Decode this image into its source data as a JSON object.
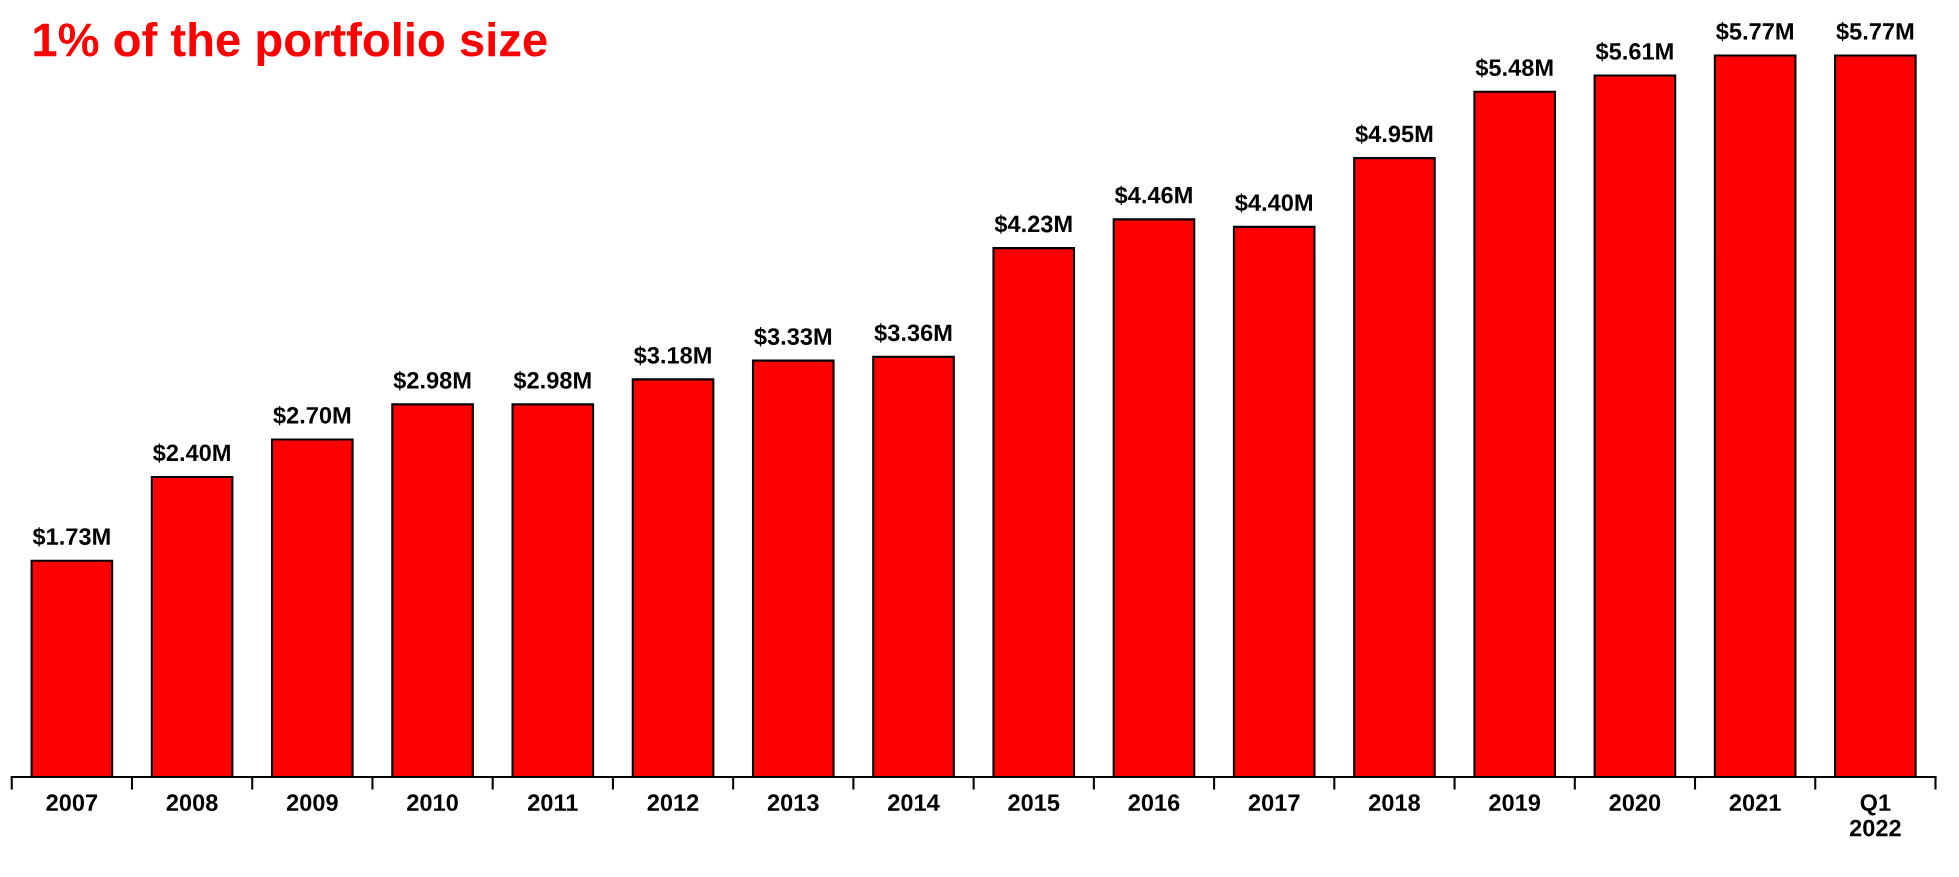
{
  "chart_data": {
    "type": "bar",
    "title": "1% of the portfolio size",
    "categories": [
      "2007",
      "2008",
      "2009",
      "2010",
      "2011",
      "2012",
      "2013",
      "2014",
      "2015",
      "2016",
      "2017",
      "2018",
      "2019",
      "2020",
      "2021",
      "Q1\n2022"
    ],
    "values": [
      1.73,
      2.4,
      2.7,
      2.98,
      2.98,
      3.18,
      3.33,
      3.36,
      4.23,
      4.46,
      4.4,
      4.95,
      5.48,
      5.61,
      5.77,
      5.77
    ],
    "value_labels": [
      "$1.73M",
      "$2.40M",
      "$2.70M",
      "$2.98M",
      "$2.98M",
      "$3.18M",
      "$3.33M",
      "$3.36M",
      "$4.23M",
      "$4.46M",
      "$4.40M",
      "$4.95M",
      "$5.48M",
      "$5.61M",
      "$5.77M",
      "$5.77M"
    ],
    "color": "#ff0000",
    "grid": false,
    "legend": false,
    "tick_labels": "x"
  }
}
